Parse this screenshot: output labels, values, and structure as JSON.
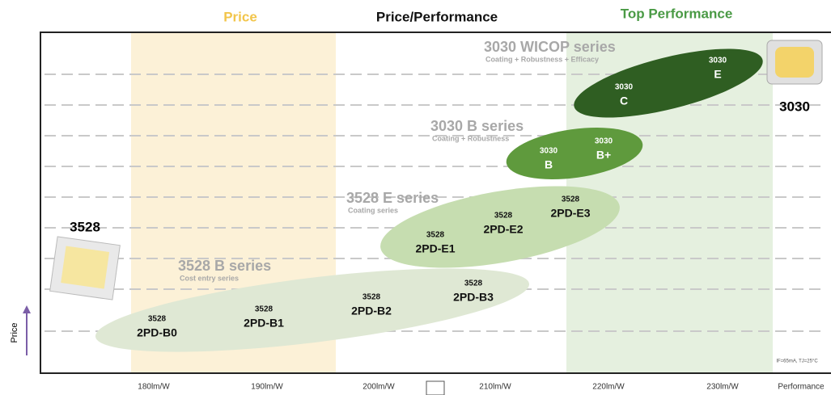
{
  "header": {
    "price": "Price",
    "price_performance": "Price/Performance",
    "top_performance": "Top Performance"
  },
  "x_labels": [
    "180lm/W",
    "190lm/W",
    "200lm/W",
    "210lm/W",
    "220lm/W",
    "230lm/W",
    "Performance"
  ],
  "y_label": "Price",
  "note": "IF=65mA, TJ=25°C",
  "packages": [
    "3528",
    "3030"
  ],
  "series": [
    {
      "name": "3528 B series",
      "subtitle": "Cost entry series"
    },
    {
      "name": "3528 E series",
      "subtitle": "Coating series"
    },
    {
      "name": "3030 B series",
      "subtitle": "Coating + Robustness"
    },
    {
      "name": "3030 WICOP series",
      "subtitle": "Coating + Robustness + Efficacy"
    }
  ],
  "products": [
    {
      "top": "3528",
      "bottom": "2PD-B0"
    },
    {
      "top": "3528",
      "bottom": "2PD-B1"
    },
    {
      "top": "3528",
      "bottom": "2PD-B2"
    },
    {
      "top": "3528",
      "bottom": "2PD-B3"
    },
    {
      "top": "3528",
      "bottom": "2PD-E1"
    },
    {
      "top": "3528",
      "bottom": "2PD-E2"
    },
    {
      "top": "3528",
      "bottom": "2PD-E3"
    },
    {
      "top": "3030",
      "bottom": "B"
    },
    {
      "top": "3030",
      "bottom": "B+"
    },
    {
      "top": "3030",
      "bottom": "C"
    },
    {
      "top": "3030",
      "bottom": "E"
    }
  ]
}
